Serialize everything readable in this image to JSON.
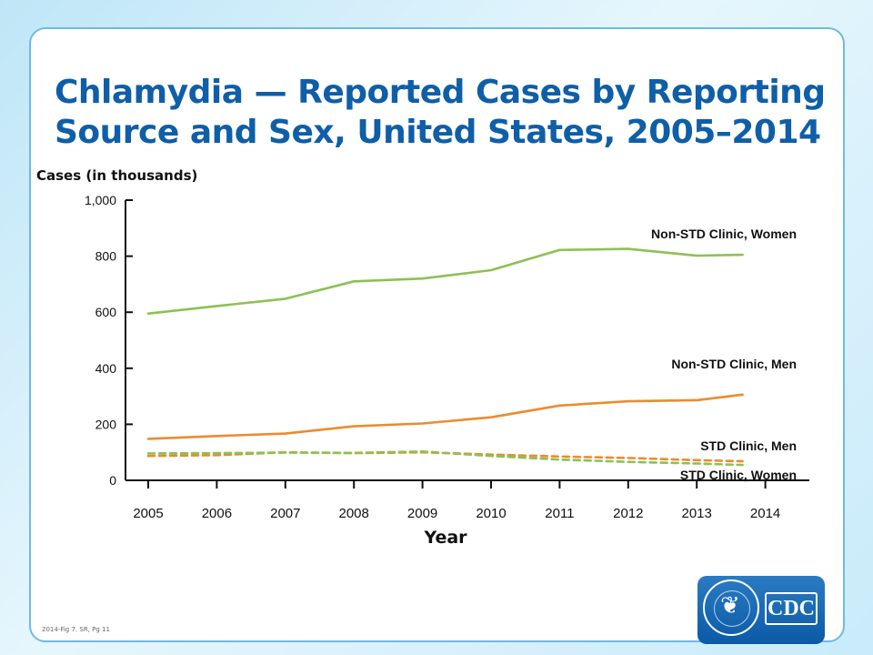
{
  "page": {
    "title_line1": "Chlamydia — Reported Cases by Reporting",
    "title_line2": "Source and Sex, United States, 2005–2014",
    "footnote": "2014-Fig 7. SR, Pg 11",
    "logo_text": "CDC",
    "colors": {
      "women": "#8cc152",
      "men": "#ec8b2e",
      "title": "#0f5ea8"
    }
  },
  "chart_data": {
    "type": "line",
    "ylabel": "Cases (in thousands)",
    "xlabel": "Year",
    "ylim": [
      0,
      1000
    ],
    "yticks": [
      0,
      200,
      400,
      600,
      800,
      1000
    ],
    "ytick_labels": [
      "0",
      "200",
      "400",
      "600",
      "800",
      "1,000"
    ],
    "categories": [
      "2005",
      "2006",
      "2007",
      "2008",
      "2009",
      "2010",
      "2011",
      "2012",
      "2013",
      "2014"
    ],
    "series": [
      {
        "name": "Non-STD Clinic, Women",
        "style": "solid",
        "color": "#8cc152",
        "values": [
          595,
          622,
          648,
          710,
          720,
          750,
          822,
          826,
          802,
          805
        ]
      },
      {
        "name": "Non-STD Clinic, Men",
        "style": "solid",
        "color": "#ec8b2e",
        "values": [
          148,
          158,
          167,
          193,
          203,
          225,
          267,
          282,
          286,
          306
        ]
      },
      {
        "name": "STD Clinic, Men",
        "style": "dashed",
        "color": "#ec8b2e",
        "values": [
          87,
          90,
          100,
          97,
          100,
          92,
          85,
          80,
          72,
          68
        ]
      },
      {
        "name": "STD Clinic, Women",
        "style": "dashed",
        "color": "#8cc152",
        "values": [
          96,
          97,
          99,
          98,
          103,
          87,
          74,
          66,
          60,
          55
        ]
      }
    ],
    "grid": false,
    "legend": "inline-right"
  }
}
